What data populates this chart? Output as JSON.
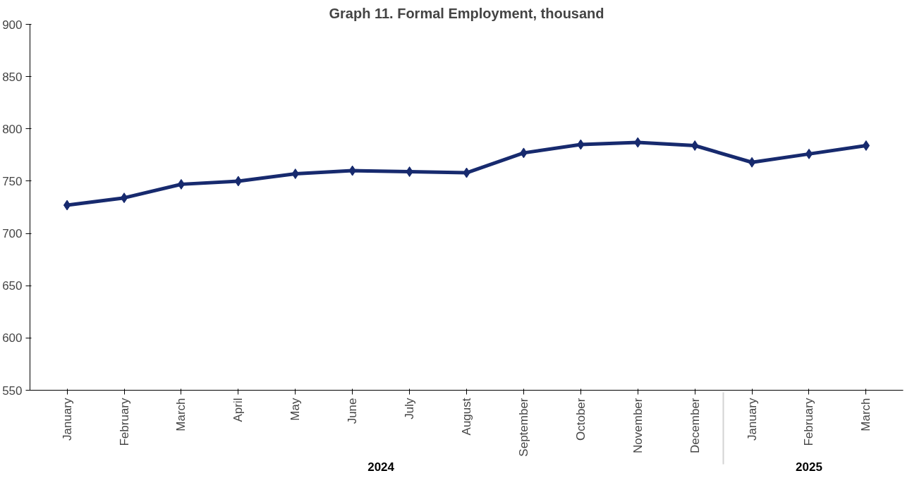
{
  "chart_data": {
    "type": "line",
    "title": "Graph 11. Formal Employment, thousand",
    "categories": [
      "January",
      "February",
      "March",
      "April",
      "May",
      "June",
      "July",
      "August",
      "September",
      "October",
      "November",
      "December",
      "January",
      "February",
      "March"
    ],
    "annotations": [
      "2024",
      "2025"
    ],
    "series": [
      {
        "color": "#172a6e",
        "values": [
          727,
          734,
          747,
          750,
          757,
          760,
          759,
          758,
          777,
          785,
          787,
          784,
          768,
          776,
          784
        ]
      }
    ],
    "ylim": [
      550,
      900
    ],
    "yticks": [
      550,
      600,
      650,
      700,
      750,
      800,
      850,
      900
    ],
    "grid": false,
    "marker": "diamond",
    "line_style": "solid"
  }
}
